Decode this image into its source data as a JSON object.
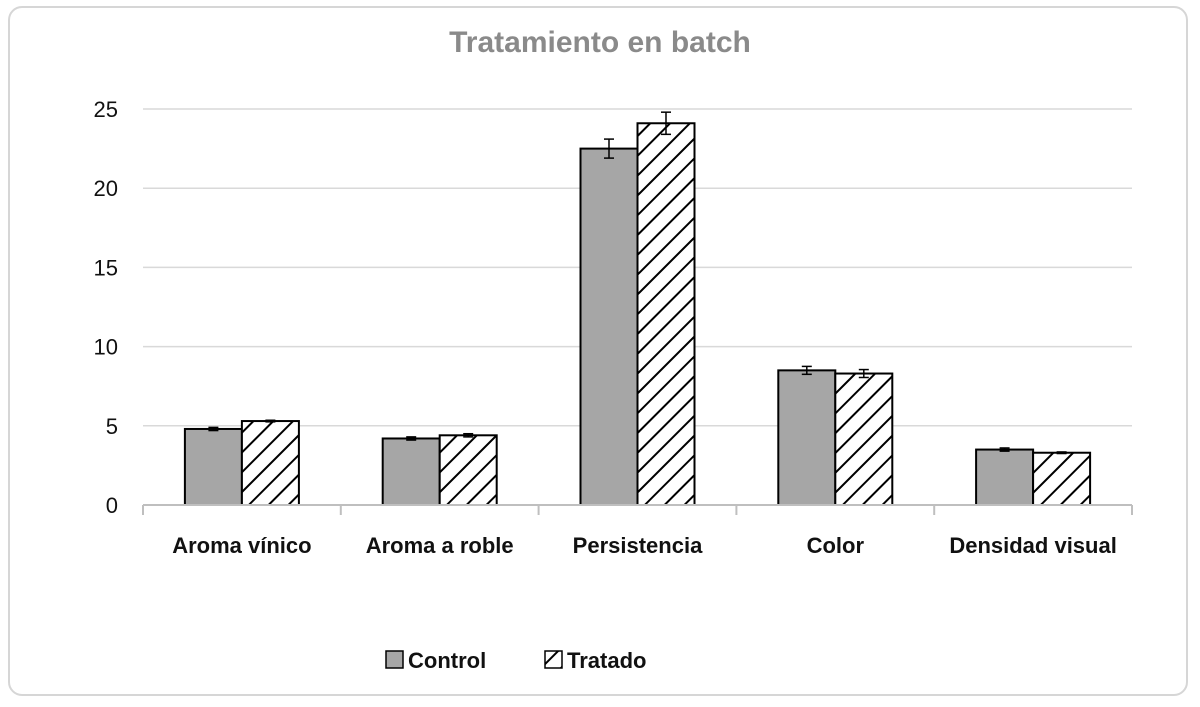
{
  "chart_data": {
    "type": "bar",
    "title": "Tratamiento en batch",
    "xlabel": "",
    "ylabel": "",
    "ylim": [
      0,
      25
    ],
    "yticks": [
      0,
      5,
      10,
      15,
      20,
      25
    ],
    "grid": true,
    "legend_position": "bottom",
    "categories": [
      "Aroma vínico",
      "Aroma a roble",
      "Persistencia",
      "Color",
      "Densidad visual"
    ],
    "series": [
      {
        "name": "Control",
        "values": [
          4.8,
          4.2,
          22.5,
          8.5,
          3.5
        ],
        "errors": [
          0.1,
          0.1,
          0.6,
          0.25,
          0.1
        ],
        "fill": "#a6a6a6",
        "pattern": "solid"
      },
      {
        "name": "Tratado",
        "values": [
          5.3,
          4.4,
          24.1,
          8.3,
          3.3
        ],
        "errors": [
          0.05,
          0.1,
          0.7,
          0.25,
          0.05
        ],
        "fill": "#ffffff",
        "pattern": "diagonal-hatch"
      }
    ]
  },
  "colors": {
    "control_fill": "#a6a6a6",
    "hatch": "#000000",
    "grid": "#d9d9d9",
    "title": "#8a8a8a"
  }
}
